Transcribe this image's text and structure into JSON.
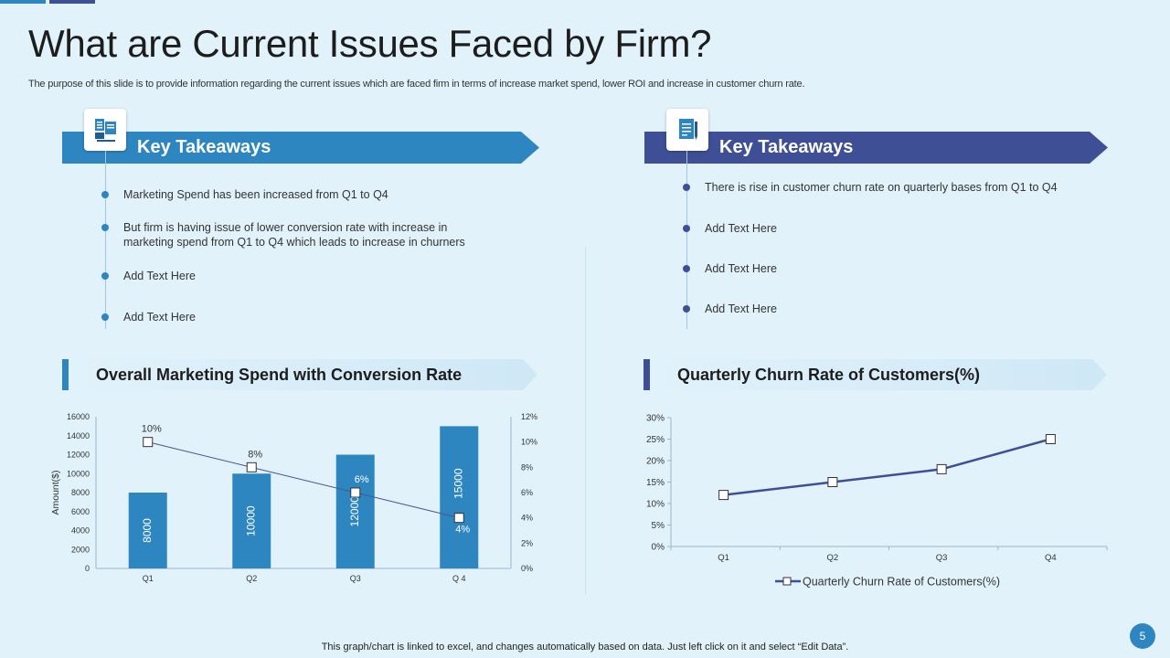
{
  "slide": {
    "title": "What are Current Issues Faced by Firm?",
    "subtitle": "The purpose of this slide is to provide information regarding the current issues which are faced firm in terms of increase market spend, lower ROI and increase in customer churn rate.",
    "footer_note": "This graph/chart is linked to excel,  and changes automatically based on data. Just left click on it and select “Edit Data”.",
    "page_number": "5"
  },
  "left_panel": {
    "banner_title": "Key Takeaways",
    "icon": "document-computer-icon",
    "bullets": [
      "Marketing Spend has been increased from Q1 to Q4",
      "But firm is having issue of lower conversion  rate with increase in marketing spend from Q1 to Q4 which leads to increase in churners",
      "Add Text Here",
      "Add Text Here"
    ],
    "chart_heading": "Overall Marketing Spend with Conversion Rate"
  },
  "right_panel": {
    "banner_title": "Key Takeaways",
    "icon": "document-pen-icon",
    "bullets": [
      "There is rise in customer churn rate on quarterly bases from Q1 to Q4",
      "Add Text Here",
      "Add Text Here",
      "Add Text Here"
    ],
    "chart_heading": "Quarterly Churn Rate of Customers(%)"
  },
  "colors": {
    "blue": "#2e86c1",
    "navy": "#3f4f96",
    "background": "#e1f2fb",
    "line": "#4a5590"
  },
  "chart_data": [
    {
      "type": "bar",
      "title": "Overall Marketing Spend with Conversion Rate",
      "categories": [
        "Q1",
        "Q2",
        "Q3",
        "Q 4"
      ],
      "ylabel": "Amount($)",
      "ylim": [
        0,
        16000
      ],
      "yticks": [
        "0",
        "2000",
        "4000",
        "6000",
        "8000",
        "10000",
        "12000",
        "14000",
        "16000"
      ],
      "y2lim": [
        0,
        12
      ],
      "y2ticks": [
        "0%",
        "2%",
        "4%",
        "6%",
        "8%",
        "10%",
        "12%"
      ],
      "series": [
        {
          "name": "Marketing Spend",
          "type": "bar",
          "axis": "left",
          "values": [
            8000,
            10000,
            12000,
            15000
          ],
          "labels": [
            "8000",
            "10000",
            "12000",
            "15000"
          ]
        },
        {
          "name": "Conversion Rate",
          "type": "line",
          "axis": "right",
          "values": [
            10,
            8,
            6,
            4
          ],
          "labels": [
            "10%",
            "8%",
            "6%",
            "4%"
          ]
        }
      ]
    },
    {
      "type": "line",
      "title": "Quarterly Churn Rate of Customers(%)",
      "categories": [
        "Q1",
        "Q2",
        "Q3",
        "Q4"
      ],
      "ylim": [
        0,
        30
      ],
      "yticks": [
        "0%",
        "5%",
        "10%",
        "15%",
        "20%",
        "25%",
        "30%"
      ],
      "legend": "bottom",
      "series": [
        {
          "name": "Quarterly Churn Rate of Customers(%)",
          "values": [
            12,
            15,
            18,
            25
          ]
        }
      ]
    }
  ]
}
